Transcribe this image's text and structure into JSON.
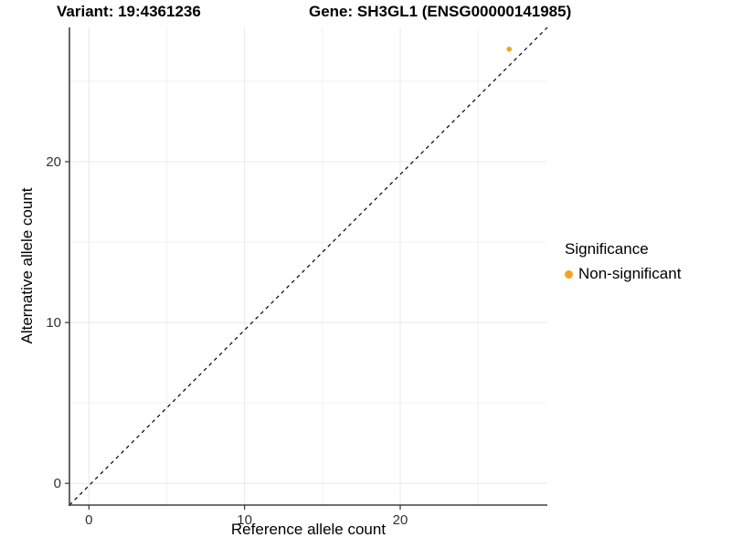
{
  "header": {
    "variant_title": "Variant: 19:4361236",
    "gene_title": "Gene: SH3GL1 (ENSG00000141985)"
  },
  "chart_data": {
    "type": "scatter",
    "xlabel": "Reference allele count",
    "ylabel": "Alternative allele count",
    "x_domain": [
      -1.25,
      29.45
    ],
    "y_domain": [
      -1.35,
      28.35
    ],
    "x_ticks": [
      0,
      10,
      20
    ],
    "y_ticks": [
      0,
      10,
      20
    ],
    "x_minor_ticks": [
      5,
      15,
      25
    ],
    "y_minor_ticks": [
      5,
      15,
      25
    ],
    "grid": true,
    "identity_line": {
      "slope": 1,
      "intercept": 0,
      "style": "dashed"
    },
    "series": [
      {
        "name": "Non-significant",
        "color": "#FBA11E",
        "points": [
          {
            "x": 27,
            "y": 27
          }
        ]
      }
    ],
    "legend": {
      "title": "Significance",
      "position": "right",
      "entries": [
        {
          "label": "Non-significant",
          "color": "#FBA11E"
        }
      ]
    }
  },
  "colors": {
    "point": "#FBA11E",
    "grid_major": "#E8E8E8",
    "grid_minor": "#F2F2F2",
    "axis_line": "#404040",
    "tick_mark": "#333333",
    "tick_label": "#303030",
    "dashed_line": "#000000",
    "background": "#FFFFFF"
  }
}
